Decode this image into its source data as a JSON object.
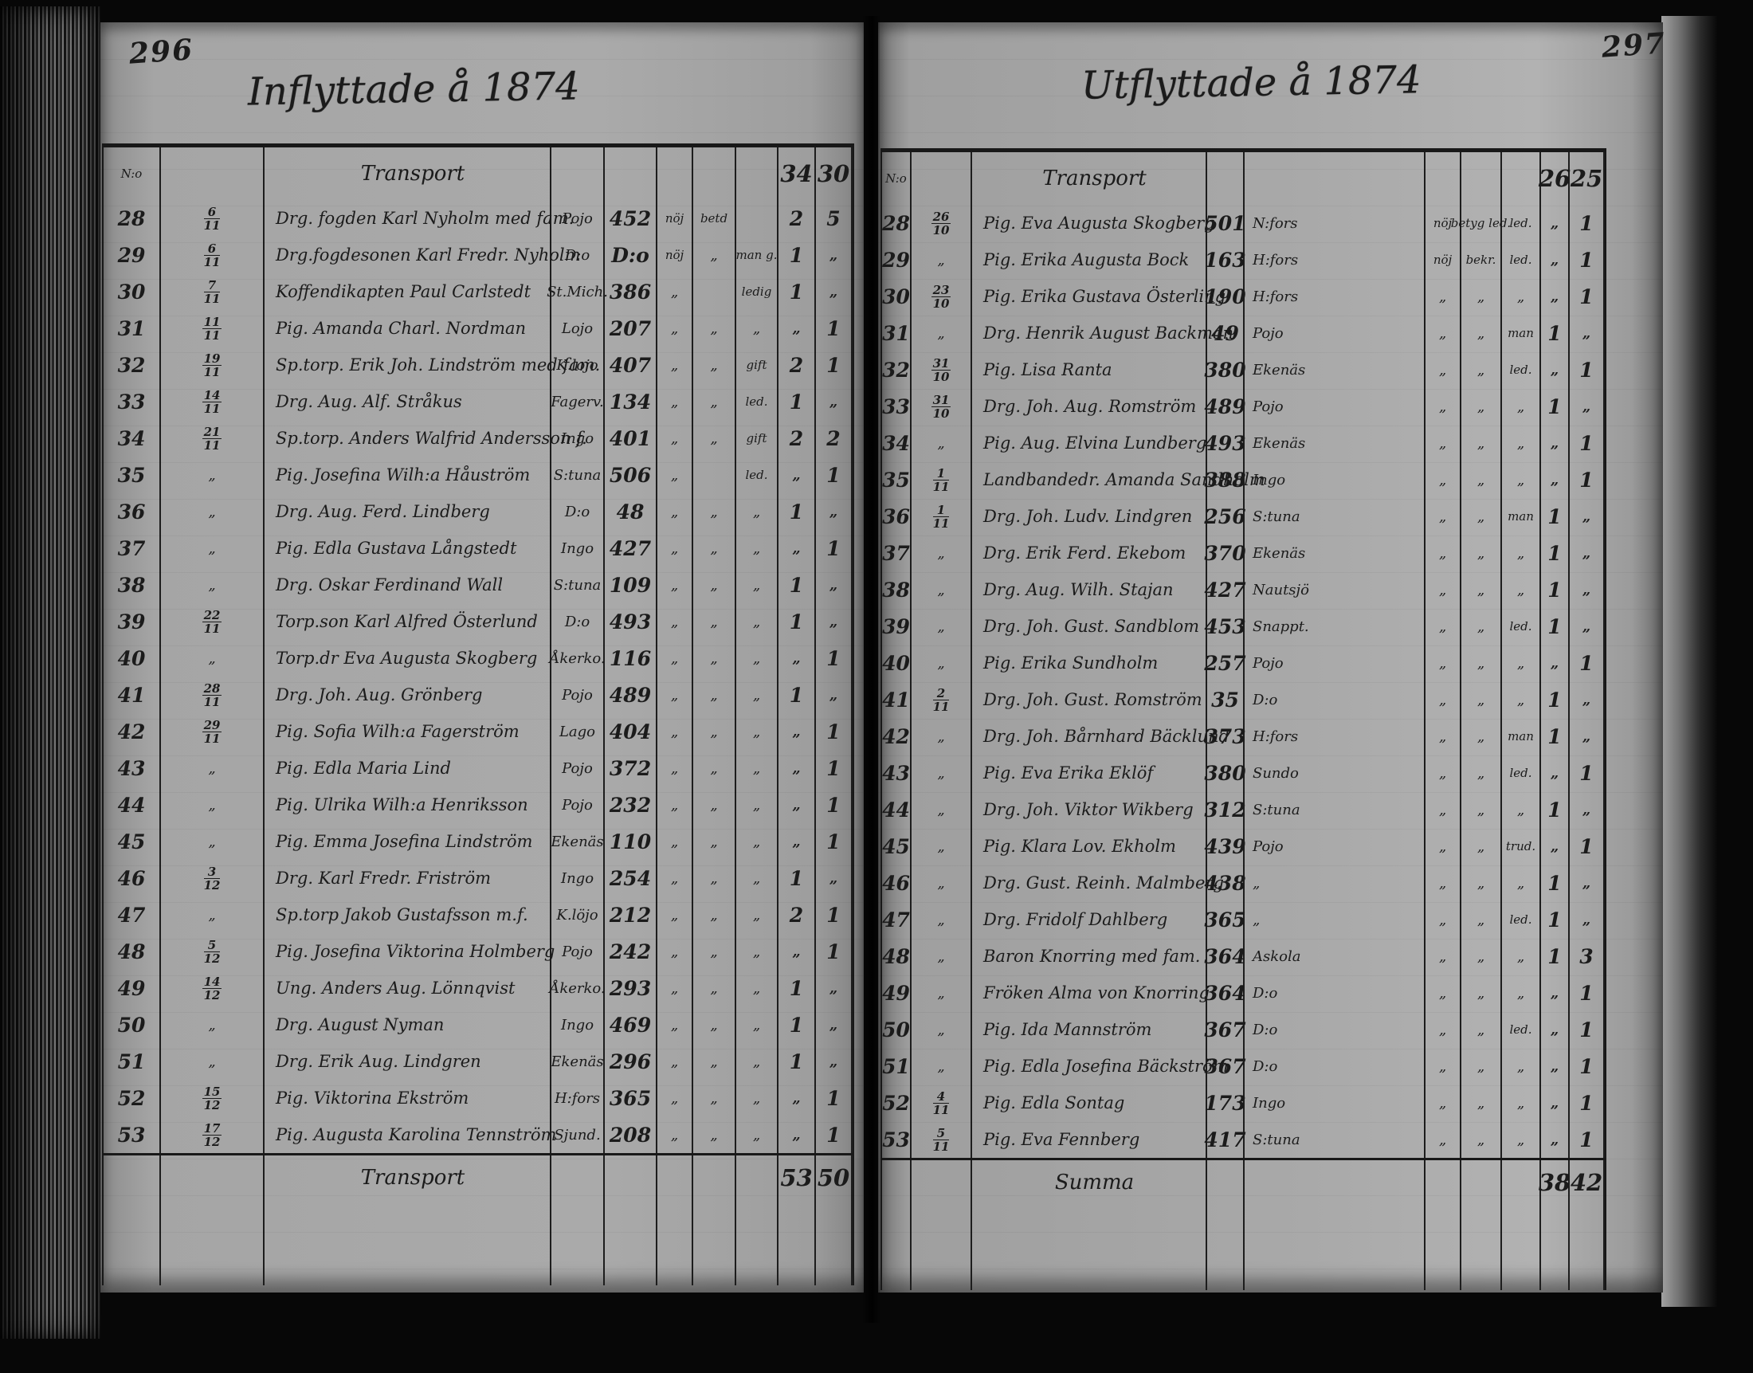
{
  "left_page": {
    "page_number": "296",
    "title": "Inflyttade å 1874",
    "header": {
      "no_label": "N:o",
      "transport_label": "Transport",
      "carried_male": "34",
      "carried_female": "30"
    },
    "rows": [
      {
        "no": "28",
        "date": "6/11",
        "name": "Drg. fogden Karl Nyholm med fam.",
        "parish": "Pojo",
        "page": "452",
        "a1": "nöj",
        "a2": "betd",
        "a3": "",
        "m": "2",
        "f": "5"
      },
      {
        "no": "29",
        "date": "6/11",
        "name": "Drg.fogdesonen Karl Fredr. Nyholm",
        "parish": "D:o",
        "page": "D:o",
        "a1": "nöj",
        "a2": "„",
        "a3": "man g.",
        "m": "1",
        "f": "„"
      },
      {
        "no": "30",
        "date": "7/11",
        "name": "Koffendikapten Paul Carlstedt",
        "parish": "St.Mich.",
        "page": "386",
        "a1": "„",
        "a2": "",
        "a3": "ledig",
        "m": "1",
        "f": "„"
      },
      {
        "no": "31",
        "date": "11/11",
        "name": "Pig. Amanda Charl. Nordman",
        "parish": "Lojo",
        "page": "207",
        "a1": "„",
        "a2": "„",
        "a3": "„",
        "m": "„",
        "f": "1"
      },
      {
        "no": "32",
        "date": "19/11",
        "name": "Sp.torp. Erik Joh. Lindström med fam.",
        "parish": "K.lojo",
        "page": "407",
        "a1": "„",
        "a2": "„",
        "a3": "gift",
        "m": "2",
        "f": "1"
      },
      {
        "no": "33",
        "date": "14/11",
        "name": "Drg. Aug. Alf. Stråkus",
        "parish": "Fagerv.",
        "page": "134",
        "a1": "„",
        "a2": "„",
        "a3": "led.",
        "m": "1",
        "f": "„"
      },
      {
        "no": "34",
        "date": "21/11",
        "name": "Sp.torp. Anders Walfrid Andersson f.",
        "parish": "Ingo",
        "page": "401",
        "a1": "„",
        "a2": "„",
        "a3": "gift",
        "m": "2",
        "f": "2"
      },
      {
        "no": "35",
        "date": "„",
        "name": "Pig. Josefina Wilh:a Håuström",
        "parish": "S:tuna",
        "page": "506",
        "a1": "„",
        "a2": "",
        "a3": "led.",
        "m": "„",
        "f": "1"
      },
      {
        "no": "36",
        "date": "„",
        "name": "Drg. Aug. Ferd. Lindberg",
        "parish": "D:o",
        "page": "48",
        "a1": "„",
        "a2": "„",
        "a3": "„",
        "m": "1",
        "f": "„"
      },
      {
        "no": "37",
        "date": "„",
        "name": "Pig. Edla Gustava Långstedt",
        "parish": "Ingo",
        "page": "427",
        "a1": "„",
        "a2": "„",
        "a3": "„",
        "m": "„",
        "f": "1"
      },
      {
        "no": "38",
        "date": "„",
        "name": "Drg. Oskar Ferdinand Wall",
        "parish": "S:tuna",
        "page": "109",
        "a1": "„",
        "a2": "„",
        "a3": "„",
        "m": "1",
        "f": "„"
      },
      {
        "no": "39",
        "date": "22/11",
        "name": "Torp.son Karl Alfred Österlund",
        "parish": "D:o",
        "page": "493",
        "a1": "„",
        "a2": "„",
        "a3": "„",
        "m": "1",
        "f": "„"
      },
      {
        "no": "40",
        "date": "„",
        "name": "Torp.dr Eva Augusta Skogberg",
        "parish": "Åkerko.",
        "page": "116",
        "a1": "„",
        "a2": "„",
        "a3": "„",
        "m": "„",
        "f": "1"
      },
      {
        "no": "41",
        "date": "28/11",
        "name": "Drg. Joh. Aug. Grönberg",
        "parish": "Pojo",
        "page": "489",
        "a1": "„",
        "a2": "„",
        "a3": "„",
        "m": "1",
        "f": "„"
      },
      {
        "no": "42",
        "date": "29/11",
        "name": "Pig. Sofia Wilh:a Fagerström",
        "parish": "Lago",
        "page": "404",
        "a1": "„",
        "a2": "„",
        "a3": "„",
        "m": "„",
        "f": "1"
      },
      {
        "no": "43",
        "date": "„",
        "name": "Pig. Edla Maria Lind",
        "parish": "Pojo",
        "page": "372",
        "a1": "„",
        "a2": "„",
        "a3": "„",
        "m": "„",
        "f": "1"
      },
      {
        "no": "44",
        "date": "„",
        "name": "Pig. Ulrika Wilh:a Henriksson",
        "parish": "Pojo",
        "page": "232",
        "a1": "„",
        "a2": "„",
        "a3": "„",
        "m": "„",
        "f": "1"
      },
      {
        "no": "45",
        "date": "„",
        "name": "Pig. Emma Josefina Lindström",
        "parish": "Ekenäs",
        "page": "110",
        "a1": "„",
        "a2": "„",
        "a3": "„",
        "m": "„",
        "f": "1"
      },
      {
        "no": "46",
        "date": "3/12",
        "name": "Drg. Karl Fredr. Friström",
        "parish": "Ingo",
        "page": "254",
        "a1": "„",
        "a2": "„",
        "a3": "„",
        "m": "1",
        "f": "„"
      },
      {
        "no": "47",
        "date": "„",
        "name": "Sp.torp Jakob Gustafsson m.f.",
        "parish": "K.löjo",
        "page": "212",
        "a1": "„",
        "a2": "„",
        "a3": "„",
        "m": "2",
        "f": "1"
      },
      {
        "no": "48",
        "date": "5/12",
        "name": "Pig. Josefina Viktorina Holmberg",
        "parish": "Pojo",
        "page": "242",
        "a1": "„",
        "a2": "„",
        "a3": "„",
        "m": "„",
        "f": "1"
      },
      {
        "no": "49",
        "date": "14/12",
        "name": "Ung. Anders Aug. Lönnqvist",
        "parish": "Åkerko.",
        "page": "293",
        "a1": "„",
        "a2": "„",
        "a3": "„",
        "m": "1",
        "f": "„"
      },
      {
        "no": "50",
        "date": "„",
        "name": "Drg. August Nyman",
        "parish": "Ingo",
        "page": "469",
        "a1": "„",
        "a2": "„",
        "a3": "„",
        "m": "1",
        "f": "„"
      },
      {
        "no": "51",
        "date": "„",
        "name": "Drg. Erik Aug. Lindgren",
        "parish": "Ekenäs",
        "page": "296",
        "a1": "„",
        "a2": "„",
        "a3": "„",
        "m": "1",
        "f": "„"
      },
      {
        "no": "52",
        "date": "15/12",
        "name": "Pig. Viktorina Ekström",
        "parish": "H:fors",
        "page": "365",
        "a1": "„",
        "a2": "„",
        "a3": "„",
        "m": "„",
        "f": "1"
      },
      {
        "no": "53",
        "date": "17/12",
        "name": "Pig. Augusta Karolina Tennström",
        "parish": "Sjund.",
        "page": "208",
        "a1": "„",
        "a2": "„",
        "a3": "„",
        "m": "„",
        "f": "1"
      }
    ],
    "footer": {
      "label": "Transport",
      "male": "53",
      "female": "50"
    }
  },
  "right_page": {
    "page_number": "297",
    "title": "Utflyttade å 1874",
    "header": {
      "no_label": "N:o",
      "transport_label": "Transport",
      "carried_male": "26",
      "carried_female": "25"
    },
    "rows": [
      {
        "no": "28",
        "date": "26/10",
        "name": "Pig. Eva Augusta Skogberg",
        "page": "501",
        "parish": "N:fors",
        "a1": "nöj",
        "a2": "betyg led.",
        "a3": "led.",
        "m": "„",
        "f": "1"
      },
      {
        "no": "29",
        "date": "„",
        "name": "Pig. Erika Augusta Bock",
        "page": "163",
        "parish": "H:fors",
        "a1": "nöj",
        "a2": "bekr.",
        "a3": "led.",
        "m": "„",
        "f": "1"
      },
      {
        "no": "30",
        "date": "23/10",
        "name": "Pig. Erika Gustava Österling",
        "page": "190",
        "parish": "H:fors",
        "a1": "„",
        "a2": "„",
        "a3": "„",
        "m": "„",
        "f": "1"
      },
      {
        "no": "31",
        "date": "„",
        "name": "Drg. Henrik August Backman",
        "page": "49",
        "parish": "Pojo",
        "a1": "„",
        "a2": "„",
        "a3": "man",
        "m": "1",
        "f": "„"
      },
      {
        "no": "32",
        "date": "31/10",
        "name": "Pig. Lisa Ranta",
        "page": "380",
        "parish": "Ekenäs",
        "a1": "„",
        "a2": "„",
        "a3": "led.",
        "m": "„",
        "f": "1"
      },
      {
        "no": "33",
        "date": "31/10",
        "name": "Drg. Joh. Aug. Romström",
        "page": "489",
        "parish": "Pojo",
        "a1": "„",
        "a2": "„",
        "a3": "„",
        "m": "1",
        "f": "„"
      },
      {
        "no": "34",
        "date": "„",
        "name": "Pig. Aug. Elvina Lundberg",
        "page": "493",
        "parish": "Ekenäs",
        "a1": "„",
        "a2": "„",
        "a3": "„",
        "m": "„",
        "f": "1"
      },
      {
        "no": "35",
        "date": "1/11",
        "name": "Landbandedr. Amanda Sandholm",
        "page": "388",
        "parish": "Ingo",
        "a1": "„",
        "a2": "„",
        "a3": "„",
        "m": "„",
        "f": "1"
      },
      {
        "no": "36",
        "date": "1/11",
        "name": "Drg. Joh. Ludv. Lindgren",
        "page": "256",
        "parish": "S:tuna",
        "a1": "„",
        "a2": "„",
        "a3": "man",
        "m": "1",
        "f": "„"
      },
      {
        "no": "37",
        "date": "„",
        "name": "Drg. Erik Ferd. Ekebom",
        "page": "370",
        "parish": "Ekenäs",
        "a1": "„",
        "a2": "„",
        "a3": "„",
        "m": "1",
        "f": "„"
      },
      {
        "no": "38",
        "date": "„",
        "name": "Drg. Aug. Wilh. Stajan",
        "page": "427",
        "parish": "Nautsjö",
        "a1": "„",
        "a2": "„",
        "a3": "„",
        "m": "1",
        "f": "„"
      },
      {
        "no": "39",
        "date": "„",
        "name": "Drg. Joh. Gust. Sandblom",
        "page": "453",
        "parish": "Snappt.",
        "a1": "„",
        "a2": "„",
        "a3": "led.",
        "m": "1",
        "f": "„"
      },
      {
        "no": "40",
        "date": "„",
        "name": "Pig. Erika Sundholm",
        "page": "257",
        "parish": "Pojo",
        "a1": "„",
        "a2": "„",
        "a3": "„",
        "m": "„",
        "f": "1"
      },
      {
        "no": "41",
        "date": "2/11",
        "name": "Drg. Joh. Gust. Romström",
        "page": "35",
        "parish": "D:o",
        "a1": "„",
        "a2": "„",
        "a3": "„",
        "m": "1",
        "f": "„"
      },
      {
        "no": "42",
        "date": "„",
        "name": "Drg. Joh. Bårnhard Bäcklund",
        "page": "373",
        "parish": "H:fors",
        "a1": "„",
        "a2": "„",
        "a3": "man",
        "m": "1",
        "f": "„"
      },
      {
        "no": "43",
        "date": "„",
        "name": "Pig. Eva Erika Eklöf",
        "page": "380",
        "parish": "Sundo",
        "a1": "„",
        "a2": "„",
        "a3": "led.",
        "m": "„",
        "f": "1"
      },
      {
        "no": "44",
        "date": "„",
        "name": "Drg. Joh. Viktor Wikberg",
        "page": "312",
        "parish": "S:tuna",
        "a1": "„",
        "a2": "„",
        "a3": "„",
        "m": "1",
        "f": "„"
      },
      {
        "no": "45",
        "date": "„",
        "name": "Pig. Klara Lov. Ekholm",
        "page": "439",
        "parish": "Pojo",
        "a1": "„",
        "a2": "„",
        "a3": "trud.",
        "m": "„",
        "f": "1"
      },
      {
        "no": "46",
        "date": "„",
        "name": "Drg. Gust. Reinh. Malmberg",
        "page": "438",
        "parish": "„",
        "a1": "„",
        "a2": "„",
        "a3": "„",
        "m": "1",
        "f": "„"
      },
      {
        "no": "47",
        "date": "„",
        "name": "Drg. Fridolf Dahlberg",
        "page": "365",
        "parish": "„",
        "a1": "„",
        "a2": "„",
        "a3": "led.",
        "m": "1",
        "f": "„"
      },
      {
        "no": "48",
        "date": "„",
        "name": "Baron Knorring med fam.",
        "page": "364",
        "parish": "Askola",
        "a1": "„",
        "a2": "„",
        "a3": "„",
        "m": "1",
        "f": "3"
      },
      {
        "no": "49",
        "date": "„",
        "name": "Fröken Alma von Knorring",
        "page": "364",
        "parish": "D:o",
        "a1": "„",
        "a2": "„",
        "a3": "„",
        "m": "„",
        "f": "1"
      },
      {
        "no": "50",
        "date": "„",
        "name": "Pig. Ida Mannström",
        "page": "367",
        "parish": "D:o",
        "a1": "„",
        "a2": "„",
        "a3": "led.",
        "m": "„",
        "f": "1"
      },
      {
        "no": "51",
        "date": "„",
        "name": "Pig. Edla Josefina Bäckström",
        "page": "367",
        "parish": "D:o",
        "a1": "„",
        "a2": "„",
        "a3": "„",
        "m": "„",
        "f": "1"
      },
      {
        "no": "52",
        "date": "4/11",
        "name": "Pig. Edla Sontag",
        "page": "173",
        "parish": "Ingo",
        "a1": "„",
        "a2": "„",
        "a3": "„",
        "m": "„",
        "f": "1"
      },
      {
        "no": "53",
        "date": "5/11",
        "name": "Pig. Eva Fennberg",
        "page": "417",
        "parish": "S:tuna",
        "a1": "„",
        "a2": "„",
        "a3": "„",
        "m": "„",
        "f": "1"
      }
    ],
    "footer": {
      "label": "Summa",
      "male": "38",
      "female": "42"
    }
  }
}
